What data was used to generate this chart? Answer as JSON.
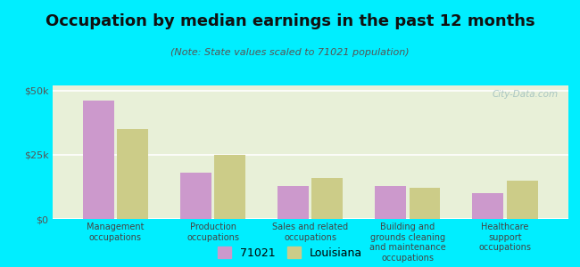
{
  "title": "Occupation by median earnings in the past 12 months",
  "subtitle": "(Note: State values scaled to 71021 population)",
  "categories": [
    "Management\noccupations",
    "Production\noccupations",
    "Sales and related\noccupations",
    "Building and\ngrounds cleaning\nand maintenance\noccupations",
    "Healthcare\nsupport\noccupations"
  ],
  "values_71021": [
    46000,
    18000,
    13000,
    13000,
    10000
  ],
  "values_louisiana": [
    35000,
    25000,
    16000,
    12000,
    15000
  ],
  "color_71021": "#cc99cc",
  "color_louisiana": "#cccc88",
  "background_outer": "#00eeff",
  "background_plot_top": "#e8f0d8",
  "background_plot_bottom": "#f8fff8",
  "ylim": [
    0,
    52000
  ],
  "yticks": [
    0,
    25000,
    50000
  ],
  "ytick_labels": [
    "$0",
    "$25k",
    "$50k"
  ],
  "legend_label_1": "71021",
  "legend_label_2": "Louisiana",
  "watermark": "City-Data.com"
}
